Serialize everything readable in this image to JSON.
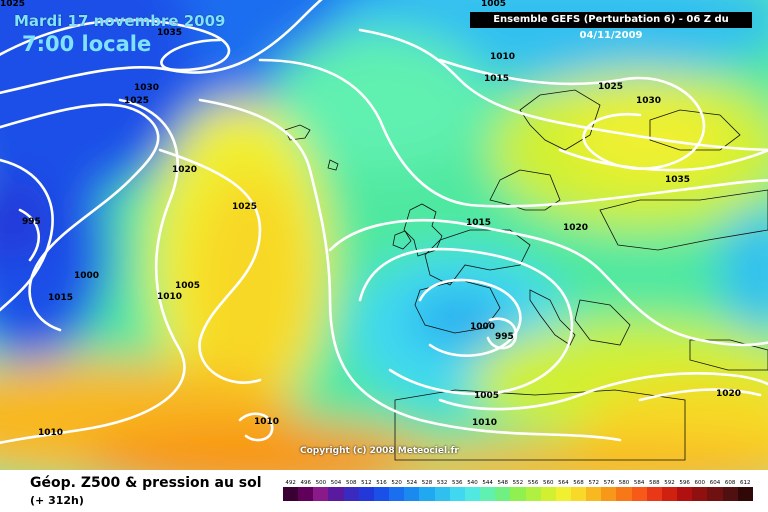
{
  "header": {
    "date": "Mardi 17 novembre 2009",
    "local_time": "7:00 locale",
    "run_info": "Ensemble GEFS (Perturbation 6) - 06 Z du 04/11/2009"
  },
  "copyright": "Copyright (c) 2008 Meteociel.fr",
  "footer": {
    "title": "Géop. Z500 & pression au sol",
    "subtitle": "(+ 312h)"
  },
  "scale": {
    "values": [
      "492",
      "496",
      "500",
      "504",
      "508",
      "512",
      "516",
      "520",
      "524",
      "528",
      "532",
      "536",
      "540",
      "544",
      "548",
      "552",
      "556",
      "560",
      "564",
      "568",
      "572",
      "576",
      "580",
      "584",
      "588",
      "592",
      "596",
      "600",
      "604",
      "608",
      "612"
    ],
    "colors": [
      "#3a0034",
      "#60005a",
      "#8a1a8a",
      "#5a1aa0",
      "#3a2ac0",
      "#2238d8",
      "#1a50e8",
      "#1a6ef0",
      "#1a8af0",
      "#20a8f0",
      "#30c0f0",
      "#40d8f0",
      "#50e8e0",
      "#60f0b0",
      "#70f080",
      "#90f050",
      "#b0f040",
      "#d0f030",
      "#f0f030",
      "#f8d828",
      "#f8b820",
      "#f89818",
      "#f87818",
      "#f85818",
      "#e83818",
      "#d02010",
      "#b01010",
      "#901010",
      "#701010",
      "#501010",
      "#300808"
    ]
  },
  "isobars": [
    {
      "label": "1025"
    },
    {
      "label": "1035"
    },
    {
      "label": "1005"
    },
    {
      "label": "1010"
    },
    {
      "label": "1015"
    },
    {
      "label": "1030"
    },
    {
      "label": "1025"
    },
    {
      "label": "1025"
    },
    {
      "label": "1030"
    },
    {
      "label": "1020"
    },
    {
      "label": "1035"
    },
    {
      "label": "1025"
    },
    {
      "label": "995"
    },
    {
      "label": "1015"
    },
    {
      "label": "1020"
    },
    {
      "label": "1000"
    },
    {
      "label": "1005"
    },
    {
      "label": "1010"
    },
    {
      "label": "1015"
    },
    {
      "label": "1000"
    },
    {
      "label": "995"
    },
    {
      "label": "1005"
    },
    {
      "label": "1010"
    },
    {
      "label": "1010"
    },
    {
      "label": "1020"
    },
    {
      "label": "1010"
    }
  ]
}
